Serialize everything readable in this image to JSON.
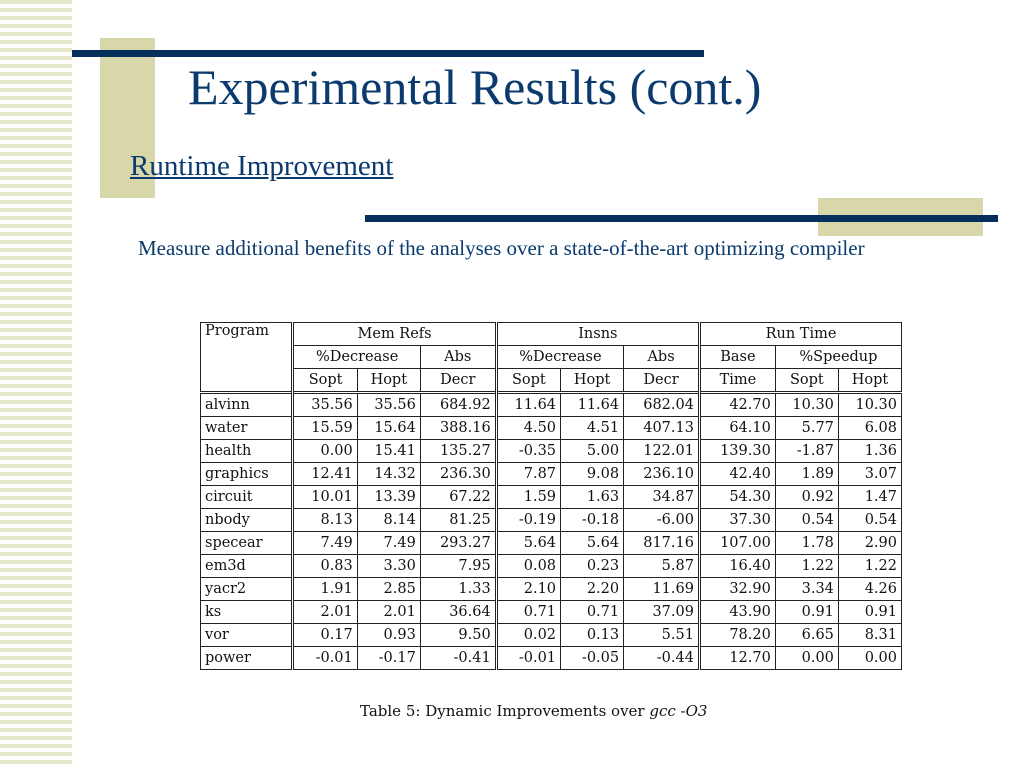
{
  "title": "Experimental Results (cont.)",
  "subtitle": "Runtime Improvement",
  "body_text": "Measure additional benefits of the analyses over a state-of-the-art optimizing compiler",
  "table": {
    "header": {
      "program": "Program",
      "group1": "Mem Refs",
      "group2": "Insns",
      "group3": "Run Time",
      "pct_decrease": "%Decrease",
      "abs": "Abs",
      "decr": "Decr",
      "sopt": "Sopt",
      "hopt": "Hopt",
      "base": "Base",
      "time": "Time",
      "pct_speedup": "%Speedup"
    },
    "rows": [
      [
        "alvinn",
        "35.56",
        "35.56",
        "684.92",
        "11.64",
        "11.64",
        "682.04",
        "42.70",
        "10.30",
        "10.30"
      ],
      [
        "water",
        "15.59",
        "15.64",
        "388.16",
        "4.50",
        "4.51",
        "407.13",
        "64.10",
        "5.77",
        "6.08"
      ],
      [
        "health",
        "0.00",
        "15.41",
        "135.27",
        "-0.35",
        "5.00",
        "122.01",
        "139.30",
        "-1.87",
        "1.36"
      ],
      [
        "graphics",
        "12.41",
        "14.32",
        "236.30",
        "7.87",
        "9.08",
        "236.10",
        "42.40",
        "1.89",
        "3.07"
      ],
      [
        "circuit",
        "10.01",
        "13.39",
        "67.22",
        "1.59",
        "1.63",
        "34.87",
        "54.30",
        "0.92",
        "1.47"
      ],
      [
        "nbody",
        "8.13",
        "8.14",
        "81.25",
        "-0.19",
        "-0.18",
        "-6.00",
        "37.30",
        "0.54",
        "0.54"
      ],
      [
        "specear",
        "7.49",
        "7.49",
        "293.27",
        "5.64",
        "5.64",
        "817.16",
        "107.00",
        "1.78",
        "2.90"
      ],
      [
        "em3d",
        "0.83",
        "3.30",
        "7.95",
        "0.08",
        "0.23",
        "5.87",
        "16.40",
        "1.22",
        "1.22"
      ],
      [
        "yacr2",
        "1.91",
        "2.85",
        "1.33",
        "2.10",
        "2.20",
        "11.69",
        "32.90",
        "3.34",
        "4.26"
      ],
      [
        "ks",
        "2.01",
        "2.01",
        "36.64",
        "0.71",
        "0.71",
        "37.09",
        "43.90",
        "0.91",
        "0.91"
      ],
      [
        "vor",
        "0.17",
        "0.93",
        "9.50",
        "0.02",
        "0.13",
        "5.51",
        "78.20",
        "6.65",
        "8.31"
      ],
      [
        "power",
        "-0.01",
        "-0.17",
        "-0.41",
        "-0.01",
        "-0.05",
        "-0.44",
        "12.70",
        "0.00",
        "0.00"
      ]
    ],
    "caption_prefix": "Table 5:  Dynamic Improvements over ",
    "caption_emph": "gcc -O3"
  }
}
